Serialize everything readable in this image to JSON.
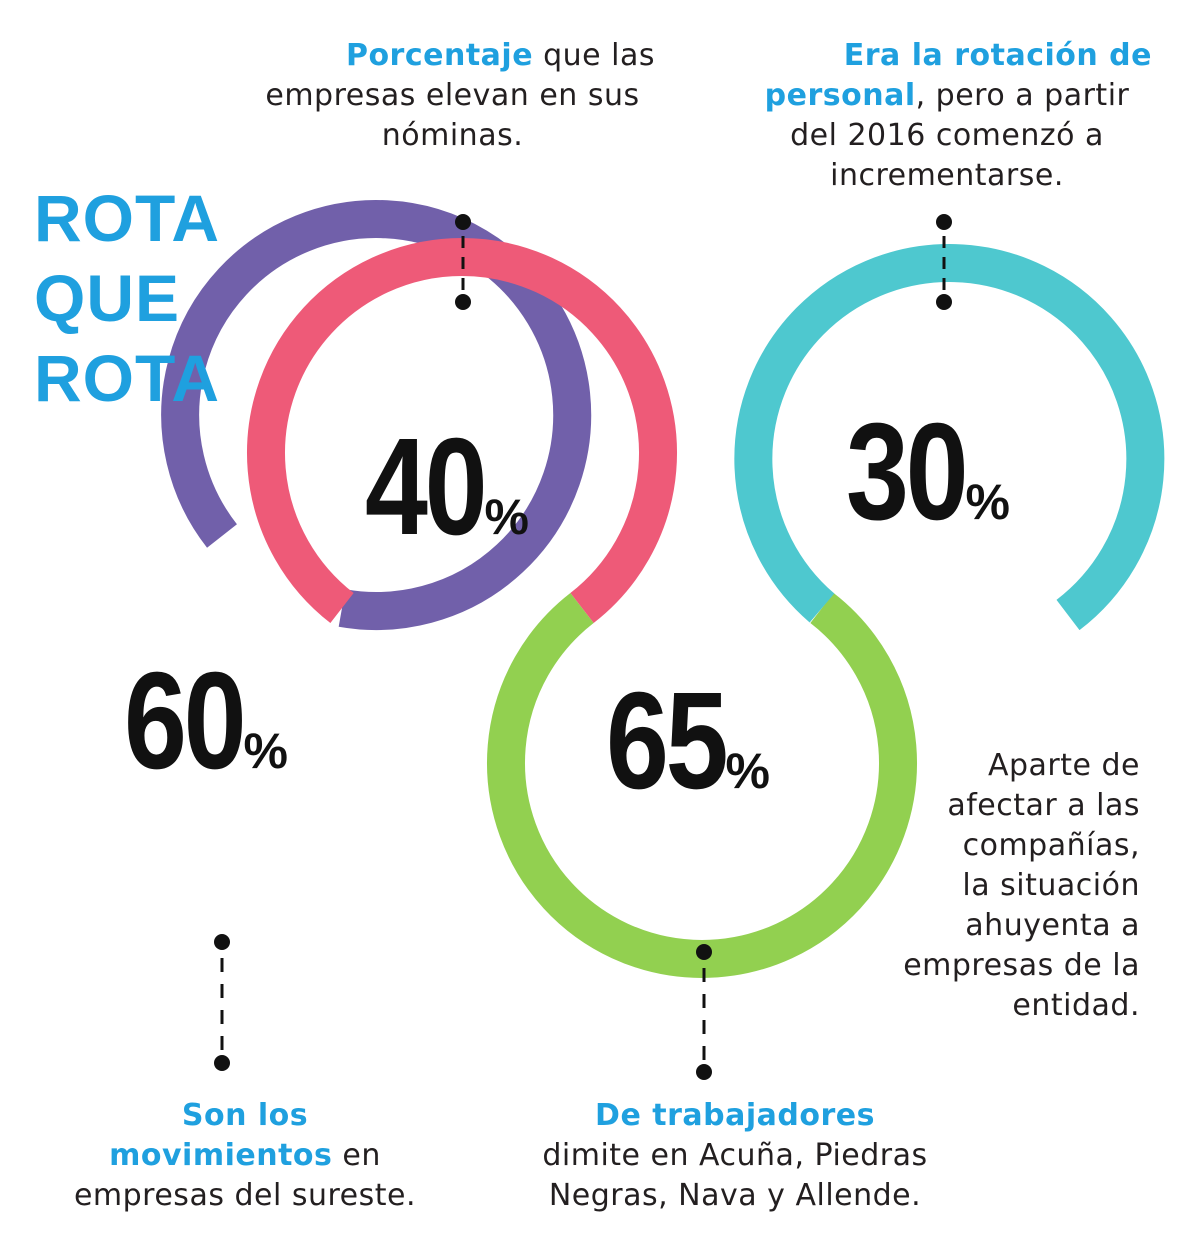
{
  "title": {
    "line1": "ROTA",
    "line2": "QUE",
    "line3": "ROTA"
  },
  "stats": [
    {
      "value": "40",
      "unit": "%"
    },
    {
      "value": "30",
      "unit": "%"
    },
    {
      "value": "60",
      "unit": "%"
    },
    {
      "value": "65",
      "unit": "%"
    }
  ],
  "captions": {
    "nominas": {
      "highlight": "Porcentaje",
      "line1_rest": " que las",
      "line2": "empresas elevan en sus",
      "line3": "nóminas."
    },
    "rotacion": {
      "highlight1": "Era la rotación de",
      "highlight2": "personal",
      "line2_rest": ", pero a partir",
      "line3": "del 2016 comenzó a",
      "line4": "incrementarse."
    },
    "sureste": {
      "highlight1": "Son los",
      "highlight2": "movimientos",
      "line2_rest": " en",
      "line3": "empresas del sureste."
    },
    "trabajadores": {
      "highlight": "De trabajadores",
      "line2": "dimite en Acuña, Piedras",
      "line3": "Negras, Nava y Allende."
    },
    "aparte": {
      "lines": [
        "Aparte de",
        "afectar a las",
        "compañías,",
        "la situación",
        "ahuyenta a",
        "empresas de la",
        "entidad."
      ]
    }
  },
  "colors": {
    "accent": "#1fa0df",
    "ring_40": "#ee5a78",
    "ring_30": "#4ec8cf",
    "ring_60": "#7160aa",
    "ring_65": "#92d050",
    "text": "#231f20",
    "dot": "#111111"
  }
}
